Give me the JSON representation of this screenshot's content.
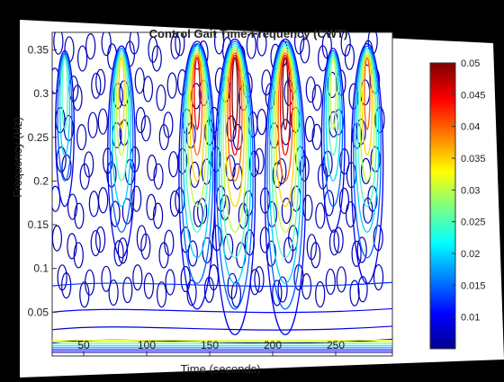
{
  "chart_data": {
    "type": "heatmap",
    "title": "Control Gait Time-Frequency (CWT)",
    "xlabel": "Time (seconds)",
    "ylabel": "Frequency (Hz)",
    "xlim": [
      25,
      295
    ],
    "ylim": [
      0,
      0.37
    ],
    "x_ticks": [
      50,
      100,
      150,
      200,
      250
    ],
    "y_ticks": [
      0.05,
      0.1,
      0.15,
      0.2,
      0.25,
      0.3,
      0.35
    ],
    "colorbar": {
      "min": 0.005,
      "max": 0.05,
      "ticks": [
        0.01,
        0.015,
        0.02,
        0.025,
        0.03,
        0.035,
        0.04,
        0.045,
        0.05
      ],
      "colormap": "jet"
    },
    "grid": false,
    "high_energy_ridges": [
      {
        "time": 35,
        "peak": 0.025
      },
      {
        "time": 80,
        "peak": 0.035
      },
      {
        "time": 140,
        "peak": 0.045
      },
      {
        "time": 170,
        "peak": 0.05
      },
      {
        "time": 210,
        "peak": 0.05
      },
      {
        "time": 248,
        "peak": 0.03
      },
      {
        "time": 275,
        "peak": 0.04
      }
    ]
  }
}
